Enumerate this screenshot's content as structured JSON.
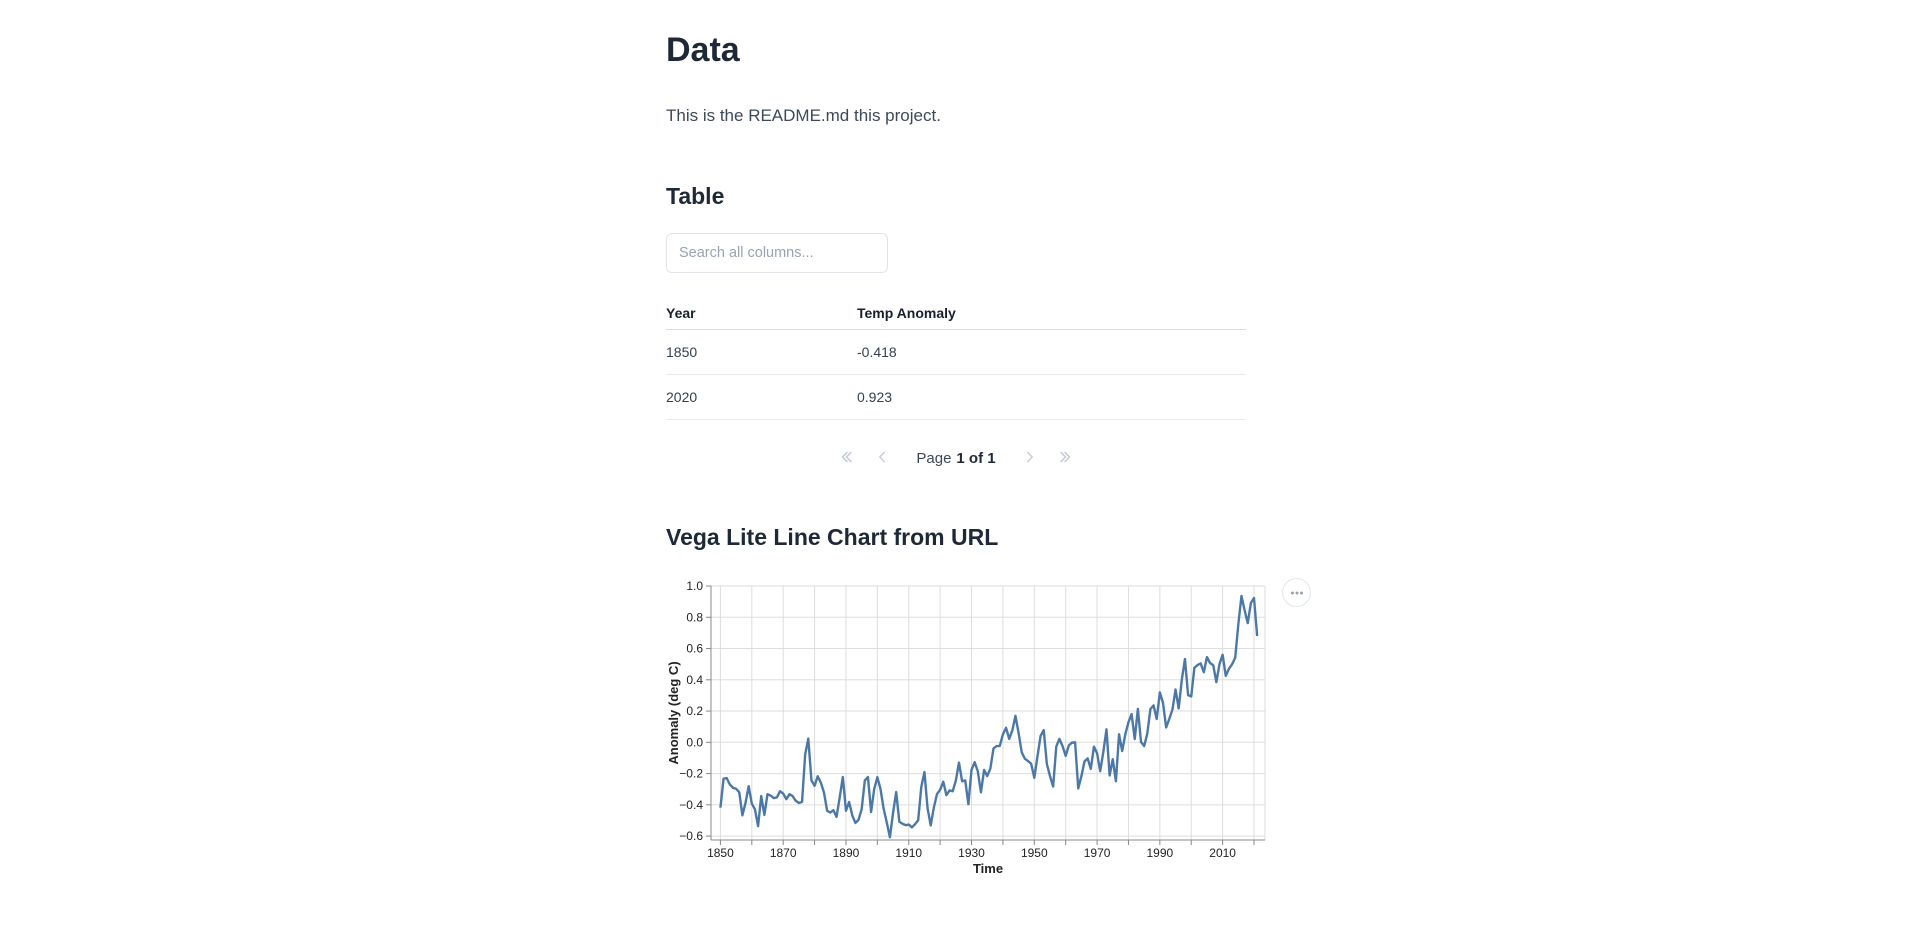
{
  "header": {
    "title": "Data",
    "description": "This is the README.md this project."
  },
  "table_section": {
    "title": "Table",
    "search": {
      "placeholder": "Search all columns...",
      "value": ""
    },
    "columns": [
      "Year",
      "Temp Anomaly"
    ],
    "rows": [
      [
        "1850",
        "-0.418"
      ],
      [
        "2020",
        "0.923"
      ]
    ],
    "pagination": {
      "page_label": "Page",
      "page_value": "1 of 1",
      "icons": [
        "chevrons-left",
        "chevron-left",
        "chevron-right",
        "chevrons-right"
      ]
    }
  },
  "chart_section": {
    "title": "Vega Lite Line Chart from URL",
    "menu_icon": "ellipsis"
  },
  "chart_data": {
    "type": "line",
    "title": "Vega Lite Line Chart from URL",
    "xlabel": "Time",
    "ylabel": "Anomaly (deg C)",
    "x_domain": [
      1847,
      2023.5
    ],
    "y_domain": [
      -0.625,
      1.0
    ],
    "x_tick_labels": [
      1850,
      1870,
      1890,
      1910,
      1930,
      1950,
      1970,
      1990,
      2010
    ],
    "x_grid_start": 1850,
    "x_grid_end": 2020,
    "x_grid_step": 10,
    "y_ticks": [
      -0.6,
      -0.4,
      -0.2,
      0.0,
      0.2,
      0.4,
      0.6,
      0.8,
      1.0
    ],
    "grid": true,
    "legend": false,
    "colors": {
      "line": "#4c78a8",
      "grid": "#dddddd",
      "axis": "#888888",
      "label": "#222222"
    },
    "series": [
      {
        "name": "Temp Anomaly",
        "x": [
          1850,
          1851,
          1852,
          1853,
          1854,
          1855,
          1856,
          1857,
          1858,
          1859,
          1860,
          1861,
          1862,
          1863,
          1864,
          1865,
          1866,
          1867,
          1868,
          1869,
          1870,
          1871,
          1872,
          1873,
          1874,
          1875,
          1876,
          1877,
          1878,
          1879,
          1880,
          1881,
          1882,
          1883,
          1884,
          1885,
          1886,
          1887,
          1888,
          1889,
          1890,
          1891,
          1892,
          1893,
          1894,
          1895,
          1896,
          1897,
          1898,
          1899,
          1900,
          1901,
          1902,
          1903,
          1904,
          1905,
          1906,
          1907,
          1908,
          1909,
          1910,
          1911,
          1912,
          1913,
          1914,
          1915,
          1916,
          1917,
          1918,
          1919,
          1920,
          1921,
          1922,
          1923,
          1924,
          1925,
          1926,
          1927,
          1928,
          1929,
          1930,
          1931,
          1932,
          1933,
          1934,
          1935,
          1936,
          1937,
          1938,
          1939,
          1940,
          1941,
          1942,
          1943,
          1944,
          1945,
          1946,
          1947,
          1948,
          1949,
          1950,
          1951,
          1952,
          1953,
          1954,
          1955,
          1956,
          1957,
          1958,
          1959,
          1960,
          1961,
          1962,
          1963,
          1964,
          1965,
          1966,
          1967,
          1968,
          1969,
          1970,
          1971,
          1972,
          1973,
          1974,
          1975,
          1976,
          1977,
          1978,
          1979,
          1980,
          1981,
          1982,
          1983,
          1984,
          1985,
          1986,
          1987,
          1988,
          1989,
          1990,
          1991,
          1992,
          1993,
          1994,
          1995,
          1996,
          1997,
          1998,
          1999,
          2000,
          2001,
          2002,
          2003,
          2004,
          2005,
          2006,
          2007,
          2008,
          2009,
          2010,
          2011,
          2012,
          2013,
          2014,
          2015,
          2016,
          2017,
          2018,
          2019,
          2020,
          2021
        ],
        "y": [
          -0.418,
          -0.233,
          -0.229,
          -0.27,
          -0.291,
          -0.297,
          -0.32,
          -0.467,
          -0.387,
          -0.281,
          -0.392,
          -0.429,
          -0.536,
          -0.344,
          -0.465,
          -0.332,
          -0.341,
          -0.357,
          -0.352,
          -0.313,
          -0.328,
          -0.364,
          -0.332,
          -0.344,
          -0.374,
          -0.388,
          -0.382,
          -0.078,
          0.024,
          -0.244,
          -0.278,
          -0.217,
          -0.259,
          -0.322,
          -0.438,
          -0.449,
          -0.434,
          -0.477,
          -0.353,
          -0.222,
          -0.438,
          -0.382,
          -0.467,
          -0.516,
          -0.496,
          -0.428,
          -0.245,
          -0.222,
          -0.446,
          -0.298,
          -0.223,
          -0.299,
          -0.425,
          -0.513,
          -0.607,
          -0.452,
          -0.318,
          -0.508,
          -0.521,
          -0.53,
          -0.526,
          -0.544,
          -0.524,
          -0.499,
          -0.285,
          -0.19,
          -0.423,
          -0.532,
          -0.417,
          -0.331,
          -0.304,
          -0.252,
          -0.338,
          -0.308,
          -0.313,
          -0.245,
          -0.13,
          -0.249,
          -0.244,
          -0.396,
          -0.176,
          -0.127,
          -0.186,
          -0.32,
          -0.177,
          -0.216,
          -0.168,
          -0.039,
          -0.024,
          -0.023,
          0.051,
          0.093,
          0.022,
          0.076,
          0.169,
          0.059,
          -0.064,
          -0.105,
          -0.12,
          -0.137,
          -0.227,
          -0.091,
          0.041,
          0.078,
          -0.138,
          -0.216,
          -0.283,
          -0.027,
          0.022,
          -0.024,
          -0.087,
          -0.02,
          -0.002,
          0.0,
          -0.295,
          -0.217,
          -0.122,
          -0.103,
          -0.17,
          -0.028,
          -0.07,
          -0.185,
          -0.06,
          0.083,
          -0.212,
          -0.108,
          -0.249,
          0.051,
          -0.056,
          0.051,
          0.129,
          0.18,
          0.021,
          0.214,
          0.002,
          -0.024,
          0.056,
          0.213,
          0.236,
          0.149,
          0.319,
          0.253,
          0.095,
          0.149,
          0.208,
          0.338,
          0.217,
          0.401,
          0.533,
          0.302,
          0.294,
          0.477,
          0.494,
          0.505,
          0.448,
          0.545,
          0.507,
          0.494,
          0.385,
          0.5,
          0.56,
          0.425,
          0.47,
          0.499,
          0.54,
          0.755,
          0.936,
          0.845,
          0.763,
          0.891,
          0.923,
          0.68
        ]
      }
    ]
  }
}
